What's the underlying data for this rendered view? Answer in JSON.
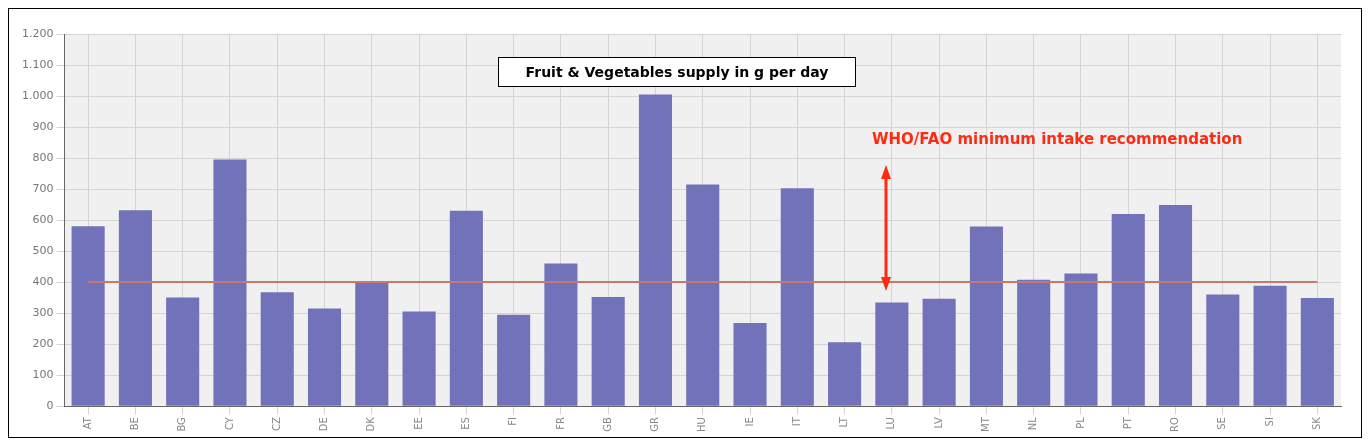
{
  "chart_data": {
    "type": "bar",
    "title": "Fruit & Vegetables supply in g per day",
    "categories": [
      "AT",
      "BE",
      "BG",
      "CY",
      "CZ",
      "DE",
      "DK",
      "EE",
      "ES",
      "FI",
      "FR",
      "GB",
      "GR",
      "HU",
      "IE",
      "IT",
      "LT",
      "LU",
      "LV",
      "MT",
      "NL",
      "PL",
      "PT",
      "RO",
      "SE",
      "SI",
      "SK"
    ],
    "values": [
      580,
      632,
      350,
      795,
      367,
      315,
      398,
      305,
      630,
      295,
      460,
      352,
      1005,
      715,
      268,
      703,
      206,
      334,
      346,
      579,
      408,
      428,
      620,
      649,
      360,
      388,
      349
    ],
    "color": "#7272ba",
    "ylim": [
      0,
      1200
    ],
    "yticks": [
      0,
      100,
      200,
      300,
      400,
      500,
      600,
      700,
      800,
      900,
      {
        "value": 1000,
        "label": "1.000"
      },
      {
        "value": 1100,
        "label": "1.100"
      },
      {
        "value": 1200,
        "label": "1.200"
      }
    ],
    "grid": true,
    "ref_lines": [
      {
        "axis": "y",
        "value": 400,
        "color": "#c8786e"
      }
    ],
    "annotations": [
      "WHO/FAO minimum intake recommendation"
    ]
  }
}
